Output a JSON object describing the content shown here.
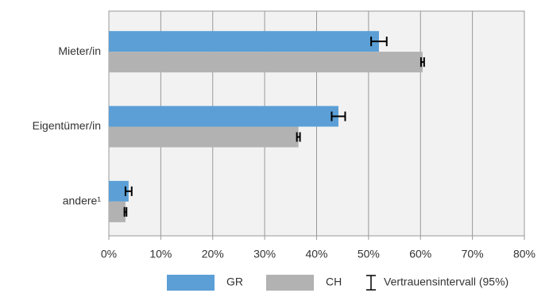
{
  "chart_data": {
    "type": "hbar",
    "categories": [
      "Mieter/in",
      "Eigentümer/in",
      "andere¹"
    ],
    "series": [
      {
        "name": "GR",
        "color": "#5b9fd6",
        "values": [
          52,
          44.2,
          3.8
        ],
        "errors": [
          1.5,
          1.3,
          0.6
        ]
      },
      {
        "name": "CH",
        "color": "#b2b2b2",
        "values": [
          60.4,
          36.5,
          3.2
        ],
        "errors": [
          0.3,
          0.3,
          0.2
        ]
      }
    ],
    "error_legend": "Vertrauensintervall (95%)",
    "xlim": [
      0,
      80
    ],
    "xticks": [
      {
        "value": 0,
        "label": "0%"
      },
      {
        "value": 10,
        "label": "10%"
      },
      {
        "value": 20,
        "label": "20%"
      },
      {
        "value": 30,
        "label": "30%"
      },
      {
        "value": 40,
        "label": "40%"
      },
      {
        "value": 50,
        "label": "50%"
      },
      {
        "value": 60,
        "label": "60%"
      },
      {
        "value": 70,
        "label": "70%"
      },
      {
        "value": 80,
        "label": "80%"
      }
    ],
    "grid": true
  }
}
